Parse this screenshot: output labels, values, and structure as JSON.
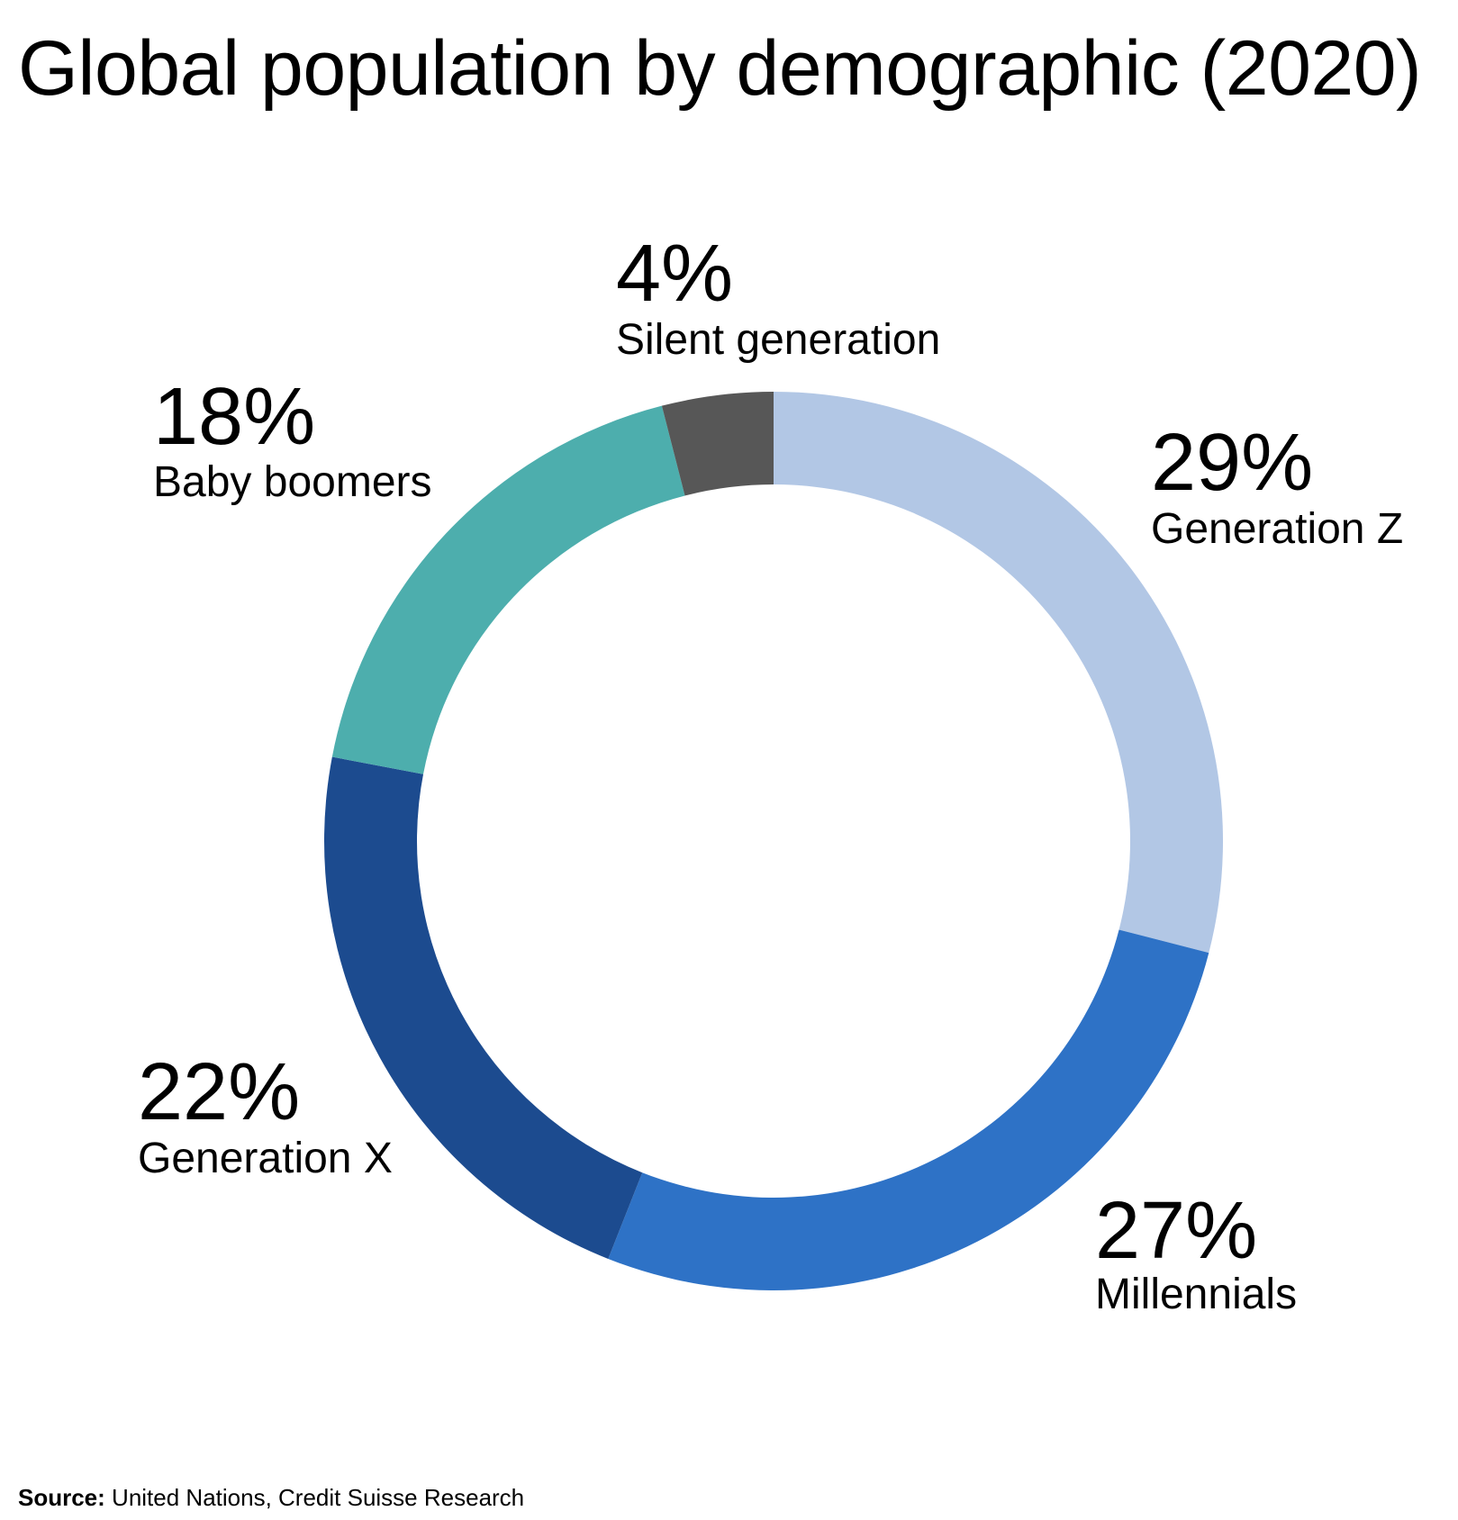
{
  "chart_data": {
    "type": "pie",
    "title": "Global population by demographic (2020)",
    "categories": [
      "Generation Z",
      "Millennials",
      "Generation X",
      "Baby boomers",
      "Silent generation"
    ],
    "values": [
      29,
      27,
      22,
      18,
      4
    ],
    "value_labels": [
      "29%",
      "27%",
      "22%",
      "18%",
      "4%"
    ],
    "colors": [
      "#b2c7e5",
      "#2e72c6",
      "#1c4b8f",
      "#4daead",
      "#575757"
    ],
    "donut": true,
    "source_label": "Source:",
    "source": "United Nations, Credit Suisse Research"
  }
}
